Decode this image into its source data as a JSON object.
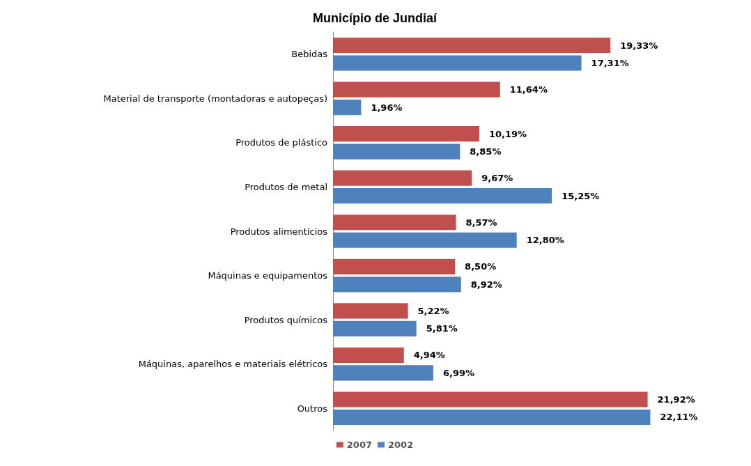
{
  "chart_data": {
    "type": "bar",
    "orientation": "horizontal",
    "title": "Município de Jundiaí",
    "categories": [
      "Bebidas",
      "Material de transporte (montadoras e autopeças)",
      "Produtos de plástico",
      "Produtos de metal",
      "Produtos alimentícios",
      "Máquinas e equipamentos",
      "Produtos químicos",
      "Máquinas, aparelhos e materiais elétricos",
      "Outros"
    ],
    "series": [
      {
        "name": "2007",
        "color": "#c0504d",
        "values": [
          19.33,
          11.64,
          10.19,
          9.67,
          8.57,
          8.5,
          5.22,
          4.94,
          21.92
        ],
        "value_labels": [
          "19,33%",
          "11,64%",
          "10,19%",
          "9,67%",
          "8,57%",
          "8,50%",
          "5,22%",
          "4,94%",
          "21,92%"
        ]
      },
      {
        "name": "2002",
        "color": "#4f81bd",
        "values": [
          17.31,
          1.96,
          8.85,
          15.25,
          12.8,
          8.92,
          5.81,
          6.99,
          22.11
        ],
        "value_labels": [
          "17,31%",
          "1,96%",
          "8,85%",
          "15,25%",
          "12,80%",
          "8,92%",
          "5,81%",
          "6,99%",
          "22,11%"
        ]
      }
    ],
    "legend": "bottom",
    "grid": false
  }
}
